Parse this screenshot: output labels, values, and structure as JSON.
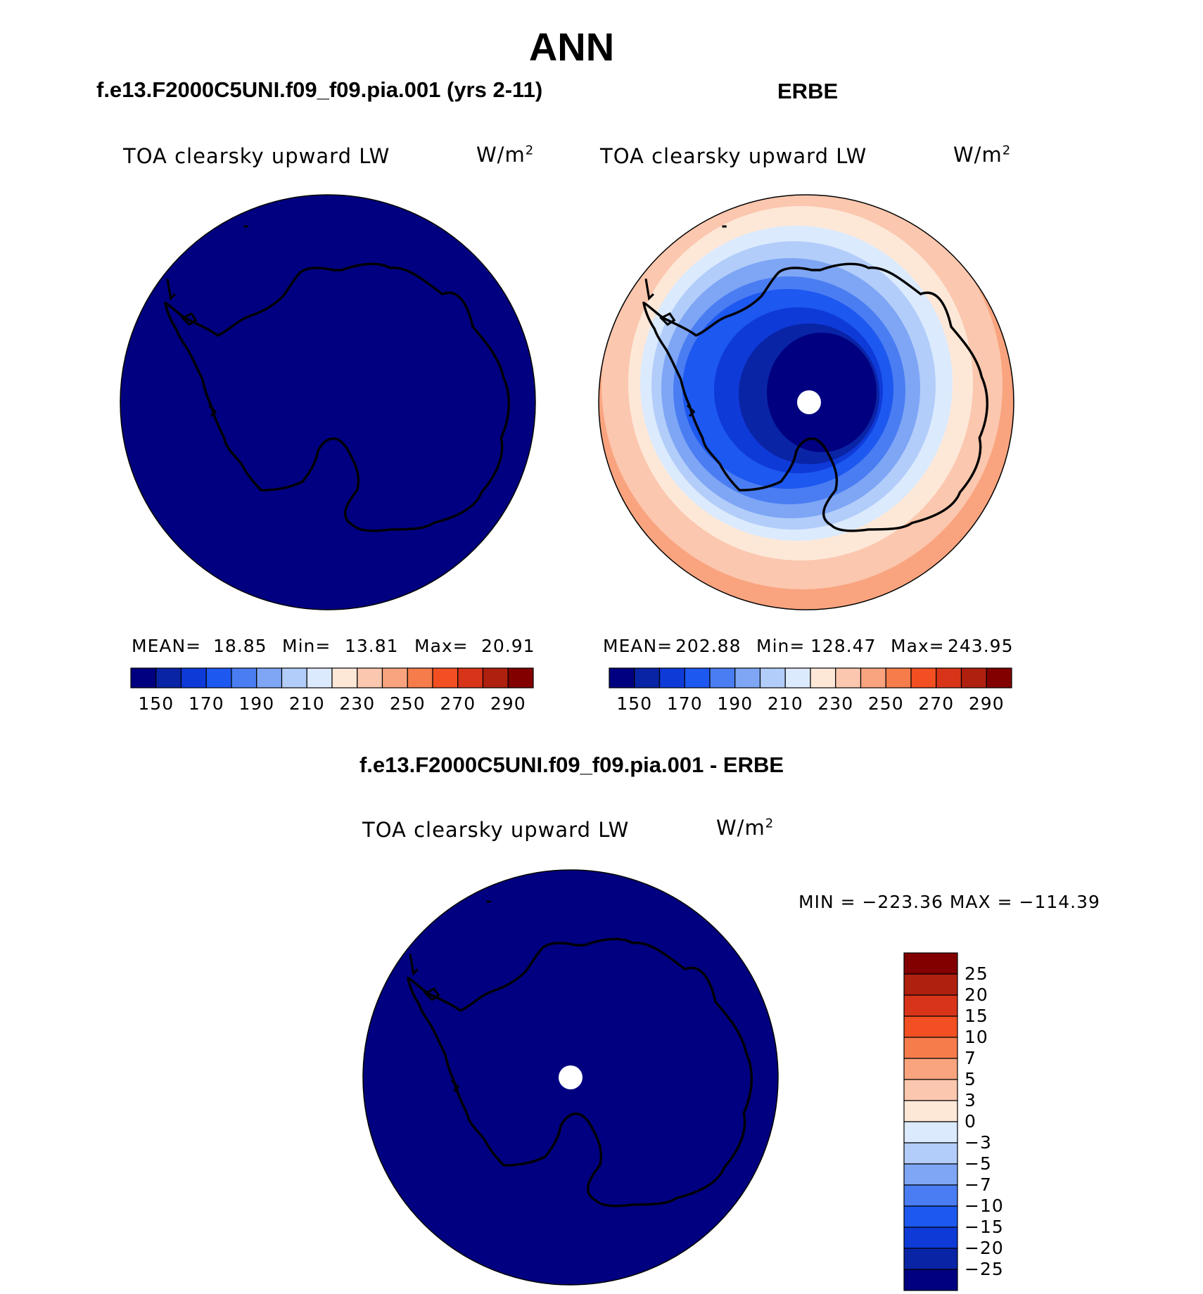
{
  "title": "ANN",
  "panels": {
    "left": {
      "case_label": "f.e13.F2000C5UNI.f09_f09.pia.001 (yrs 2-11)",
      "variable": "TOA clearsky upward LW",
      "units": "W/m",
      "units_exp": "2",
      "mean_label": "MEAN=",
      "mean": "18.85",
      "min_label": "Min=",
      "min": "13.81",
      "max_label": "Max=",
      "max": "20.91"
    },
    "right": {
      "case_label": "ERBE",
      "variable": "TOA clearsky upward LW",
      "units": "W/m",
      "units_exp": "2",
      "mean_label": "MEAN=",
      "mean": "202.88",
      "min_label": "Min=",
      "min": "128.47",
      "max_label": "Max=",
      "max": "243.95"
    },
    "diff": {
      "case_label": "f.e13.F2000C5UNI.f09_f09.pia.001 - ERBE",
      "variable": "TOA clearsky upward LW",
      "units": "W/m",
      "units_exp": "2",
      "minmax_text": "MIN = −223.36 MAX = −114.39"
    }
  },
  "colorbar_top": {
    "colors": [
      "#000080",
      "#0a24a6",
      "#0e3ad8",
      "#1d58f0",
      "#4a7df2",
      "#7ea6f5",
      "#b3cdfa",
      "#dbeafd",
      "#fde8d8",
      "#fbc7ae",
      "#f9a47f",
      "#f67c4b",
      "#f24f22",
      "#d8341a",
      "#b0200f",
      "#820000"
    ],
    "tick_labels": [
      "150",
      "170",
      "190",
      "210",
      "230",
      "250",
      "270",
      "290"
    ]
  },
  "colorbar_diff": {
    "colors": [
      "#820000",
      "#b0200f",
      "#d8341a",
      "#f24f22",
      "#f67c4b",
      "#f9a47f",
      "#fbc7ae",
      "#fde8d8",
      "#dbeafd",
      "#b3cdfa",
      "#7ea6f5",
      "#4a7df2",
      "#1d58f0",
      "#0e3ad8",
      "#0a24a6",
      "#000080"
    ],
    "tick_labels": [
      "25",
      "20",
      "15",
      "10",
      "7",
      "5",
      "3",
      "0",
      "−3",
      "−5",
      "−7",
      "−10",
      "−15",
      "−20",
      "−25"
    ]
  },
  "map_fill_color": "#000080"
}
